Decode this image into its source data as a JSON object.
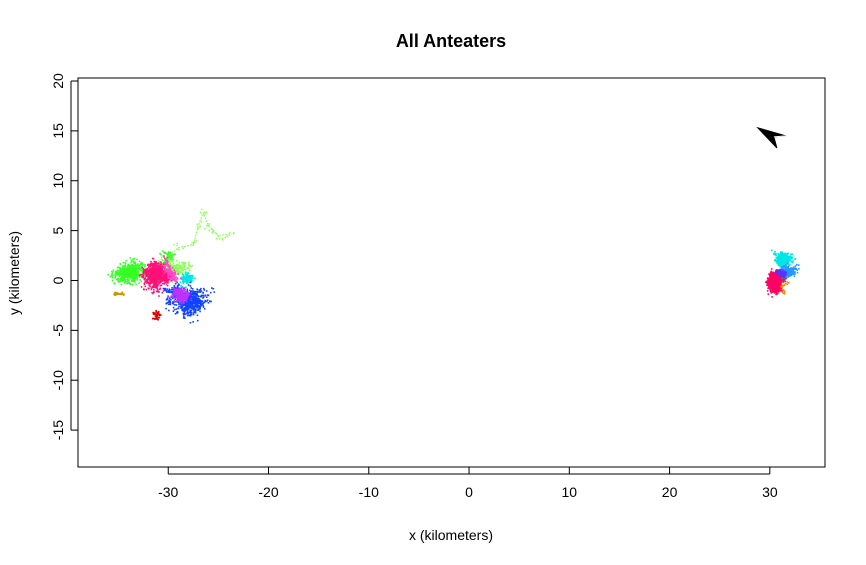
{
  "chart_data": {
    "type": "scatter",
    "title": "All Anteaters",
    "xlabel": "x (kilometers)",
    "ylabel": "y (kilometers)",
    "xlim": [
      -39,
      35.5
    ],
    "ylim": [
      -18.7,
      20.3
    ],
    "xticks": [
      -30,
      -20,
      -10,
      0,
      10,
      20,
      30
    ],
    "yticks": [
      -15,
      -10,
      -5,
      0,
      5,
      10,
      15,
      20
    ],
    "grid": false,
    "legend": "none",
    "north_arrow": {
      "x": 30.2,
      "y": 14.6,
      "icon": "north-arrow-icon"
    },
    "series": [
      {
        "color": "#33ff22",
        "clusters": [
          {
            "cx": -33.8,
            "cy": 0.8,
            "sx": 1.3,
            "sy": 0.8,
            "n": 520
          },
          {
            "cx": -30.5,
            "cy": 2.3,
            "sx": 0.7,
            "sy": 0.5,
            "n": 80
          }
        ]
      },
      {
        "color": "#88ff55",
        "clusters": [
          {
            "cx": -29.8,
            "cy": 1.2,
            "sx": 1.1,
            "sy": 0.8,
            "n": 260
          }
        ],
        "path": [
          [
            -32.5,
            1.0
          ],
          [
            -30.5,
            2.0
          ],
          [
            -29.0,
            3.3
          ],
          [
            -27.5,
            3.6
          ],
          [
            -27.0,
            5.5
          ],
          [
            -26.5,
            6.8
          ],
          [
            -26.0,
            5.5
          ],
          [
            -25.5,
            5.0
          ],
          [
            -25.0,
            4.5
          ],
          [
            -23.8,
            4.7
          ]
        ]
      },
      {
        "color": "#00e6e6",
        "clusters": [
          {
            "cx": -28.3,
            "cy": 0.3,
            "sx": 0.5,
            "sy": 0.5,
            "n": 120
          }
        ]
      },
      {
        "color": "#1144ff",
        "clusters": [
          {
            "cx": -28.0,
            "cy": -2.2,
            "sx": 1.2,
            "sy": 1.0,
            "n": 550
          },
          {
            "cx": -29.3,
            "cy": -0.9,
            "sx": 0.6,
            "sy": 0.5,
            "n": 120
          }
        ]
      },
      {
        "color": "#bb33ff",
        "clusters": [
          {
            "cx": -28.8,
            "cy": -1.2,
            "sx": 0.7,
            "sy": 0.6,
            "n": 280
          }
        ]
      },
      {
        "color": "#ff44cc",
        "clusters": [
          {
            "cx": -30.8,
            "cy": 0.8,
            "sx": 0.9,
            "sy": 0.8,
            "n": 420
          }
        ]
      },
      {
        "color": "#ff1177",
        "clusters": [
          {
            "cx": -31.4,
            "cy": 0.6,
            "sx": 0.8,
            "sy": 0.9,
            "n": 650
          }
        ]
      },
      {
        "color": "#dd0000",
        "clusters": [
          {
            "cx": -31.1,
            "cy": -3.5,
            "sx": 0.4,
            "sy": 0.4,
            "n": 40
          }
        ]
      },
      {
        "color": "#cc9900",
        "clusters": [
          {
            "cx": -35.0,
            "cy": -1.3,
            "sx": 0.6,
            "sy": 0.2,
            "n": 35
          }
        ]
      },
      {
        "color": "#ff8800",
        "clusters": [
          {
            "cx": 30.8,
            "cy": -0.5,
            "sx": 0.6,
            "sy": 0.5,
            "n": 120
          }
        ]
      },
      {
        "color": "#00ff66",
        "clusters": [
          {
            "cx": 31.3,
            "cy": 0.3,
            "sx": 0.4,
            "sy": 0.4,
            "n": 60
          }
        ]
      },
      {
        "color": "#00e6e6",
        "clusters": [
          {
            "cx": 31.3,
            "cy": 2.1,
            "sx": 0.6,
            "sy": 0.5,
            "n": 420
          }
        ]
      },
      {
        "color": "#2299ff",
        "clusters": [
          {
            "cx": 31.5,
            "cy": 1.0,
            "sx": 0.7,
            "sy": 0.4,
            "n": 380
          }
        ]
      },
      {
        "color": "#5533ff",
        "clusters": [
          {
            "cx": 30.8,
            "cy": 0.5,
            "sx": 0.5,
            "sy": 0.4,
            "n": 200
          }
        ]
      },
      {
        "color": "#ff0066",
        "clusters": [
          {
            "cx": 30.4,
            "cy": -0.3,
            "sx": 0.5,
            "sy": 0.7,
            "n": 700
          }
        ]
      }
    ]
  }
}
